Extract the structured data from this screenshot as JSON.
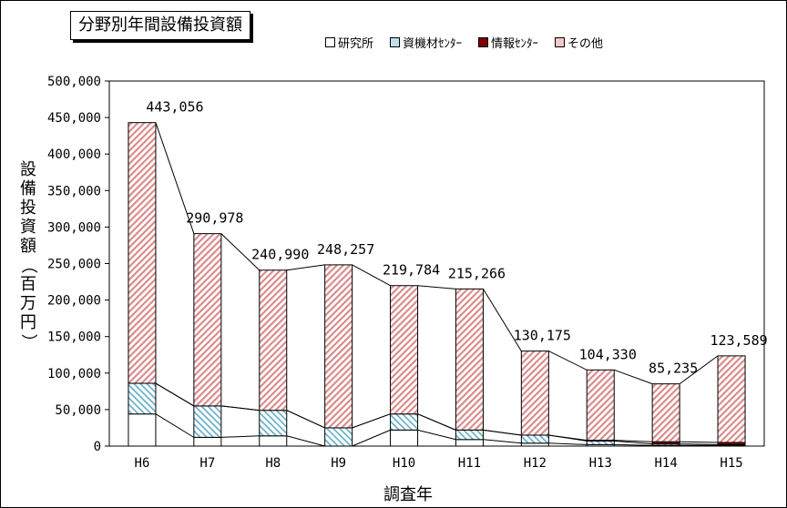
{
  "chart_data": {
    "type": "bar",
    "title": "分野別年間設備投資額",
    "xlabel": "調査年",
    "ylabel": "設備投資額（百万円）",
    "ylim": [
      0,
      500000
    ],
    "yticks": [
      "0",
      "50,000",
      "100,000",
      "150,000",
      "200,000",
      "250,000",
      "300,000",
      "350,000",
      "400,000",
      "450,000",
      "500,000"
    ],
    "categories": [
      "H6",
      "H7",
      "H8",
      "H9",
      "H10",
      "H11",
      "H12",
      "H13",
      "H14",
      "H15"
    ],
    "totals_labels": [
      "443,056",
      "290,978",
      "240,990",
      "248,257",
      "219,784",
      "215,266",
      "130,175",
      "104,330",
      "85,235",
      "123,589"
    ],
    "totals": [
      443056,
      290978,
      240990,
      248257,
      219784,
      215266,
      130175,
      104330,
      85235,
      123589
    ],
    "stacked": true,
    "series": [
      {
        "name": "研究所",
        "color": "#ffffff",
        "pattern": "none",
        "values": [
          44000,
          12000,
          14000,
          0,
          22000,
          9000,
          4000,
          2000,
          1000,
          1000
        ]
      },
      {
        "name": "資機材ｾﾝﾀｰ",
        "color": "#bfe0ea",
        "pattern": "diagonal-blue",
        "values": [
          42000,
          43000,
          35000,
          25000,
          22000,
          13000,
          11000,
          5000,
          2000,
          1000
        ]
      },
      {
        "name": "情報ｾﾝﾀｰ",
        "color": "#800000",
        "pattern": "solid",
        "values": [
          0,
          0,
          0,
          0,
          0,
          0,
          0,
          1000,
          3000,
          3000
        ]
      },
      {
        "name": "その他",
        "color": "#f2c8c8",
        "pattern": "diagonal-red",
        "values": [
          357056,
          235978,
          191990,
          223257,
          175784,
          193266,
          115175,
          96330,
          79235,
          118589
        ]
      }
    ],
    "grid": false,
    "legend_position": "top-right"
  }
}
